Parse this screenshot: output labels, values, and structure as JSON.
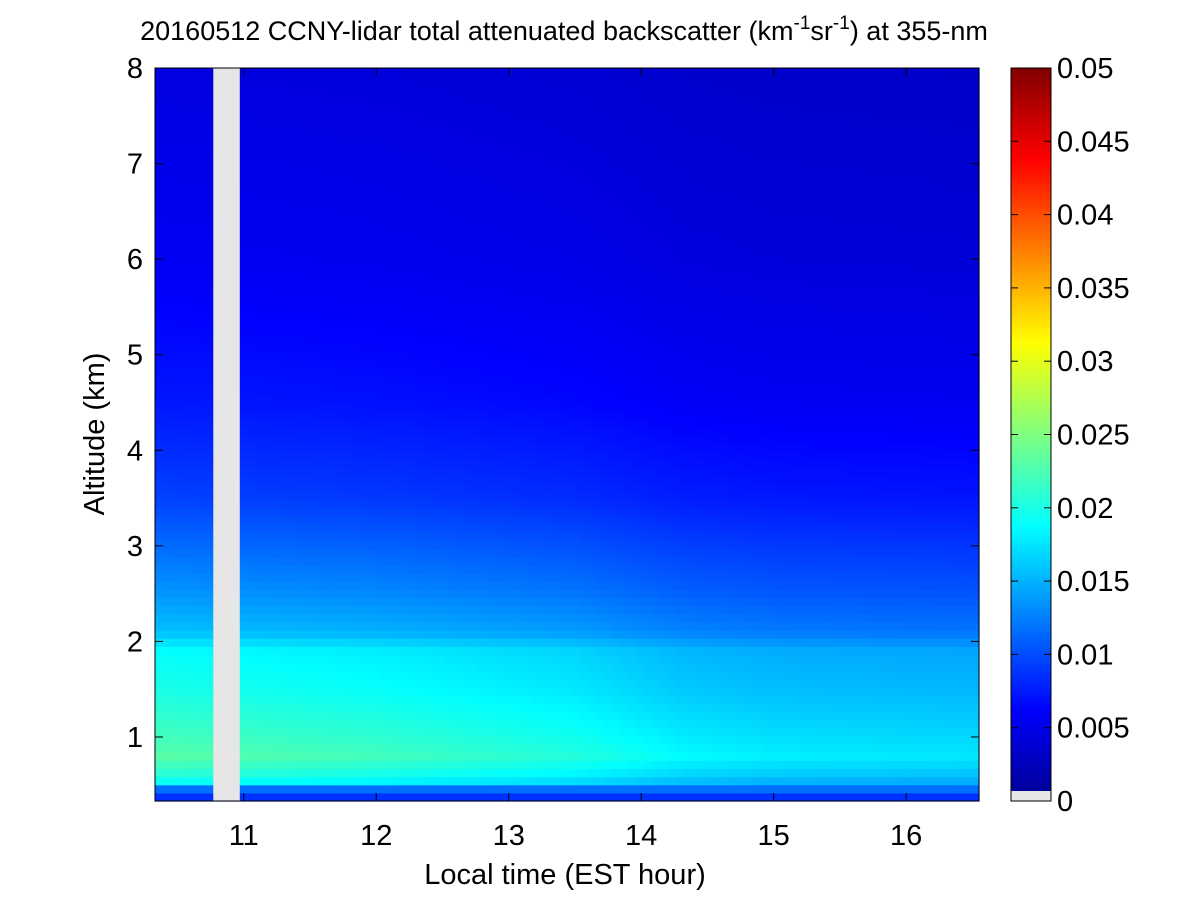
{
  "chart_data": {
    "type": "heatmap",
    "title": {
      "prefix": "20160512 CCNY-lidar total attenuated backscatter (km",
      "sup1": "-1",
      "mid": "sr",
      "sup2": "-1",
      "suffix": ") at 355-nm"
    },
    "xlabel": "Local time (EST hour)",
    "ylabel": "Altitude (km)",
    "xlim": [
      10.33,
      16.55
    ],
    "ylim": [
      0.33,
      8
    ],
    "xticks": [
      11,
      12,
      13,
      14,
      15,
      16
    ],
    "yticks": [
      1,
      2,
      3,
      4,
      5,
      6,
      7,
      8
    ],
    "colorbar": {
      "range": [
        0,
        0.05
      ],
      "ticks": [
        {
          "value": 0,
          "label": "0"
        },
        {
          "value": 0.005,
          "label": "0.005"
        },
        {
          "value": 0.01,
          "label": "0.01"
        },
        {
          "value": 0.015,
          "label": "0.015"
        },
        {
          "value": 0.02,
          "label": "0.02"
        },
        {
          "value": 0.025,
          "label": "0.025"
        },
        {
          "value": 0.03,
          "label": "0.03"
        },
        {
          "value": 0.035,
          "label": "0.035"
        },
        {
          "value": 0.04,
          "label": "0.04"
        },
        {
          "value": 0.045,
          "label": "0.045"
        },
        {
          "value": 0.05,
          "label": "0.05"
        }
      ],
      "colormap": "jet"
    },
    "no_data_color": "#e6e6e6",
    "no_data_interval": [
      10.77,
      10.97
    ],
    "altitude_profile": [
      {
        "alt": 0.35,
        "value": 0.008
      },
      {
        "alt": 0.45,
        "value": 0.011
      },
      {
        "alt": 0.55,
        "value": 0.019
      },
      {
        "alt": 0.8,
        "value": 0.022
      },
      {
        "alt": 1.0,
        "value": 0.021
      },
      {
        "alt": 1.5,
        "value": 0.019
      },
      {
        "alt": 1.9,
        "value": 0.018
      },
      {
        "alt": 2.1,
        "value": 0.015
      },
      {
        "alt": 2.5,
        "value": 0.013
      },
      {
        "alt": 3.0,
        "value": 0.011
      },
      {
        "alt": 3.5,
        "value": 0.009
      },
      {
        "alt": 4.5,
        "value": 0.007
      },
      {
        "alt": 6.0,
        "value": 0.0055
      },
      {
        "alt": 8.0,
        "value": 0.0045
      }
    ],
    "time_factor": [
      {
        "t": 10.33,
        "factor": 1.05
      },
      {
        "t": 12.0,
        "factor": 1.0
      },
      {
        "t": 13.5,
        "factor": 0.93
      },
      {
        "t": 14.3,
        "factor": 0.85
      },
      {
        "t": 15.0,
        "factor": 0.82
      },
      {
        "t": 16.55,
        "factor": 0.8
      }
    ]
  }
}
